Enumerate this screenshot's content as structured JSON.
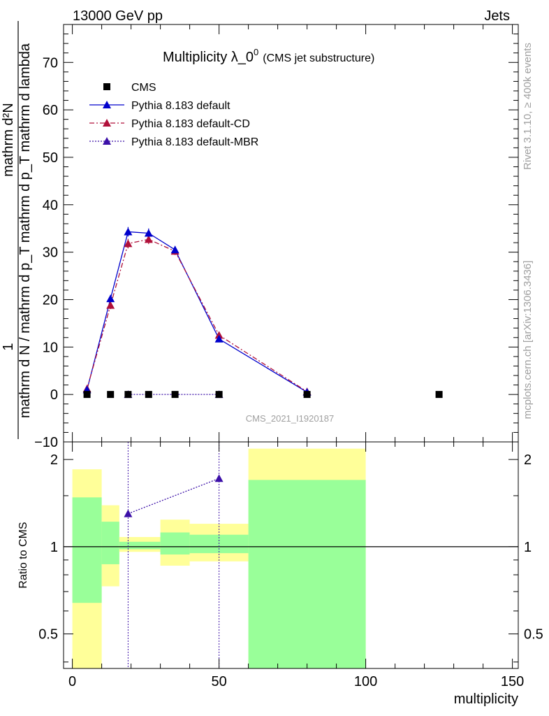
{
  "header": {
    "left": "13000 GeV pp",
    "right": "Jets"
  },
  "side_text": {
    "rivet": "Rivet 3.1.10, ≥ 400k events",
    "mcplots": "mcplots.cern.ch [arXiv:1306.3436]"
  },
  "colors": {
    "cms": "#000000",
    "default": "#0000cc",
    "cd": "#b0103a",
    "mbr": "#3c10a8",
    "band_inner": "#99ff99",
    "band_outer": "#ffff99",
    "label_gray": "#a0a0a0"
  },
  "chart_data": [
    {
      "type": "line",
      "title": "Multiplicity λ_0",
      "title_sup": "0",
      "subtitle": "(CMS jet substructure)",
      "watermark": "CMS_2021_I1920187",
      "ylabel_top": "1",
      "ylabel_num": "mathrm d²N",
      "ylabel_den": "mathrm d N / mathrm d p_T mathrm d p_T mathrm d lambda",
      "xlim": [
        -3,
        152
      ],
      "ylim": [
        -10,
        78
      ],
      "yticks": [
        -10,
        0,
        10,
        20,
        30,
        40,
        50,
        60,
        70
      ],
      "ytick_labels": [
        "−10",
        "0",
        "10",
        "20",
        "30",
        "40",
        "50",
        "60",
        "70"
      ],
      "legend": [
        "CMS",
        "Pythia 8.183 default",
        "Pythia 8.183 default-CD",
        "Pythia 8.183 default-MBR"
      ],
      "series": [
        {
          "name": "CMS",
          "x": [
            5,
            13,
            19,
            26,
            35,
            50,
            80,
            125
          ],
          "y": [
            0,
            0,
            0,
            0,
            0,
            0,
            0,
            0
          ]
        },
        {
          "name": "Pythia 8.183 default",
          "x": [
            5,
            13,
            19,
            26,
            35,
            50,
            80
          ],
          "y": [
            1.0,
            20.2,
            34.3,
            34.0,
            30.5,
            11.7,
            0.5
          ],
          "err": [
            0.4,
            0.8,
            1.0,
            1.0,
            0.8,
            0.5,
            0.2
          ]
        },
        {
          "name": "Pythia 8.183 default-CD",
          "x": [
            5,
            13,
            19,
            26,
            35,
            50,
            80
          ],
          "y": [
            1.2,
            18.8,
            31.8,
            32.7,
            30.2,
            12.5,
            0.6
          ],
          "err": [
            0.4,
            0.8,
            1.0,
            1.0,
            0.8,
            0.5,
            0.2
          ]
        },
        {
          "name": "Pythia 8.183 default-MBR",
          "x": [
            19,
            50
          ],
          "y": [
            0,
            0
          ]
        }
      ]
    },
    {
      "type": "line",
      "ylabel": "Ratio to CMS",
      "xlabel": "multiplicity",
      "xlim": [
        -3,
        152
      ],
      "ylim": [
        0.38,
        2.3
      ],
      "xticks": [
        0,
        50,
        100,
        150
      ],
      "xtick_labels": [
        "0",
        "50",
        "100",
        "150"
      ],
      "yticks": [
        0.5,
        1,
        2
      ],
      "ytick_labels": [
        "0.5",
        "1",
        "2"
      ],
      "bands": [
        {
          "x0": 0,
          "x1": 10,
          "inner": [
            0.64,
            1.48
          ],
          "outer": [
            0.35,
            1.85
          ]
        },
        {
          "x0": 10,
          "x1": 16,
          "inner": [
            0.87,
            1.22
          ],
          "outer": [
            0.73,
            1.39
          ]
        },
        {
          "x0": 16,
          "x1": 30,
          "inner": [
            0.98,
            1.04
          ],
          "outer": [
            0.96,
            1.08
          ]
        },
        {
          "x0": 30,
          "x1": 40,
          "inner": [
            0.94,
            1.12
          ],
          "outer": [
            0.86,
            1.24
          ]
        },
        {
          "x0": 40,
          "x1": 60,
          "inner": [
            0.95,
            1.1
          ],
          "outer": [
            0.89,
            1.2
          ]
        },
        {
          "x0": 60,
          "x1": 100,
          "inner": [
            0.35,
            1.7
          ],
          "outer": [
            0.35,
            2.18
          ]
        }
      ],
      "series": [
        {
          "name": "Pythia 8.183 default-MBR",
          "x": [
            19,
            50
          ],
          "y": [
            1.3,
            1.72
          ]
        }
      ]
    }
  ]
}
